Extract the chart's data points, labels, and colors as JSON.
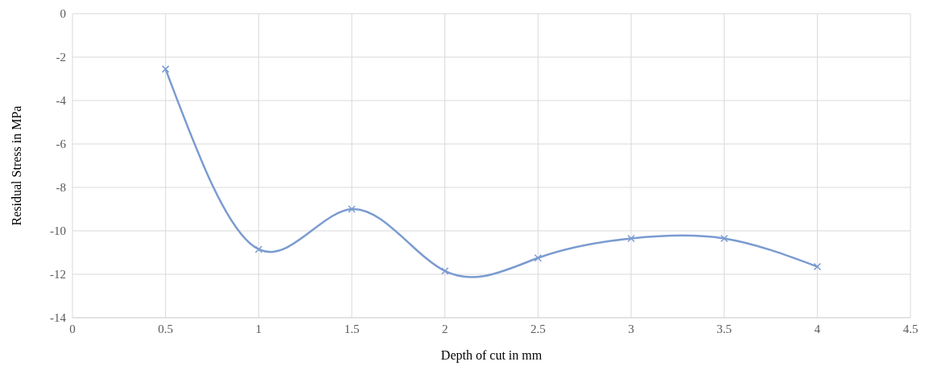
{
  "chart_data": {
    "type": "line",
    "xlabel": "Depth of cut in mm",
    "ylabel": "Residual Stress in MPa",
    "x": [
      0.5,
      1,
      1.5,
      2,
      2.5,
      3,
      3.5,
      4
    ],
    "series": [
      {
        "color": "#7a9bd0",
        "values": [
          -2.55,
          -10.85,
          -9,
          -11.85,
          -11.25,
          -10.35,
          -10.35,
          -11.65
        ]
      }
    ],
    "xlim": [
      0,
      4.5
    ],
    "xticks": [
      0,
      0.5,
      1,
      1.5,
      2,
      2.5,
      3,
      3.5,
      4,
      4.5
    ],
    "ylim": [
      -14,
      0
    ],
    "yticks": [
      -14,
      -12,
      -10,
      -8,
      -6,
      -4,
      -2,
      0
    ],
    "grid": true,
    "legend": false,
    "marker": "cross",
    "line_style": "solid"
  }
}
